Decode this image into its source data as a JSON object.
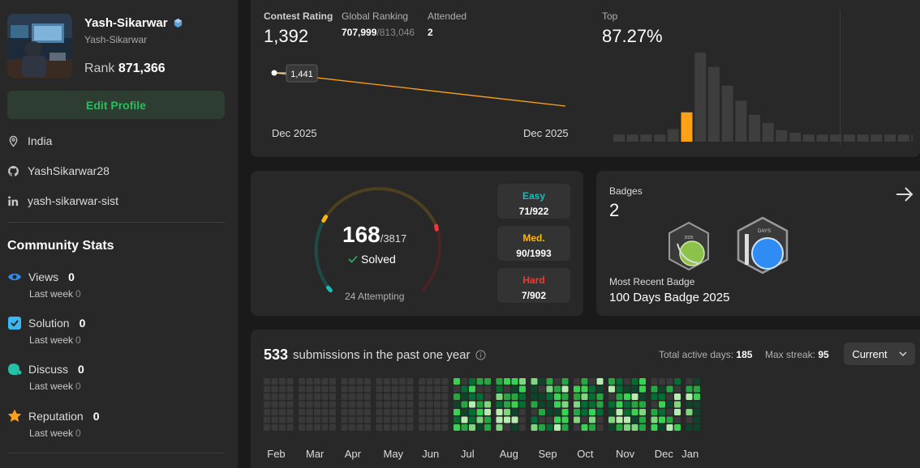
{
  "profile": {
    "name": "Yash-Sikarwar",
    "handle": "Yash-Sikarwar",
    "rank_label": "Rank",
    "rank_value": "871,366",
    "edit_label": "Edit Profile",
    "location": "India",
    "github": "YashSikarwar28",
    "linkedin": "yash-sikarwar-sist"
  },
  "community": {
    "title": "Community Stats",
    "items": [
      {
        "label": "Views",
        "value": "0",
        "sub": "Last week",
        "delta": "0",
        "icon": "eye-icon",
        "color": "#2f8cf4"
      },
      {
        "label": "Solution",
        "value": "0",
        "sub": "Last week",
        "delta": "0",
        "icon": "solution-icon",
        "color": "#3bb8f3"
      },
      {
        "label": "Discuss",
        "value": "0",
        "sub": "Last week",
        "delta": "0",
        "icon": "discuss-icon",
        "color": "#23c2a8"
      },
      {
        "label": "Reputation",
        "value": "0",
        "sub": "Last week",
        "delta": "0",
        "icon": "star-icon",
        "color": "#ffa116"
      }
    ]
  },
  "contest": {
    "rating_label": "Contest Rating",
    "rating": "1,392",
    "global_label": "Global Ranking",
    "global_rank": "707,999",
    "global_total": "/813,046",
    "attended_label": "Attended",
    "attended": "2",
    "top_label": "Top",
    "top_value": "87.27%",
    "tooltip": "1,441",
    "date_start": "Dec 2025",
    "date_end": "Dec 2025",
    "histogram": [
      0.08,
      0.08,
      0.08,
      0.08,
      0.14,
      0.33,
      1.0,
      0.84,
      0.63,
      0.46,
      0.3,
      0.21,
      0.13,
      0.1,
      0.08,
      0.08,
      0.08,
      0.08,
      0.08,
      0.08,
      0.08,
      0.08,
      0.08
    ],
    "histogram_highlight": 5
  },
  "solved": {
    "count": "168",
    "total": "/3817",
    "solved_label": "Solved",
    "attempting": "24 Attempting",
    "difficulties": [
      {
        "name": "Easy",
        "value": "71/922",
        "color": "#1cbaba"
      },
      {
        "name": "Med.",
        "value": "90/1993",
        "color": "#ffb700"
      },
      {
        "name": "Hard",
        "value": "7/902",
        "color": "#f63737"
      }
    ]
  },
  "badges": {
    "label": "Badges",
    "count": "2",
    "recent_label": "Most Recent Badge",
    "recent_name": "100 Days Badge 2025",
    "badge1_text": "2025",
    "badge2_text": "DAYS"
  },
  "submissions": {
    "count": "533",
    "label": "submissions in the past one year",
    "active_label": "Total active days:",
    "active_value": "185",
    "streak_label": "Max streak:",
    "streak_value": "95",
    "selector": "Current",
    "months": [
      "Feb",
      "Mar",
      "Apr",
      "May",
      "Jun",
      "Jul",
      "Aug",
      "Sep",
      "Oct",
      "Nov",
      "Dec",
      "Jan"
    ]
  }
}
